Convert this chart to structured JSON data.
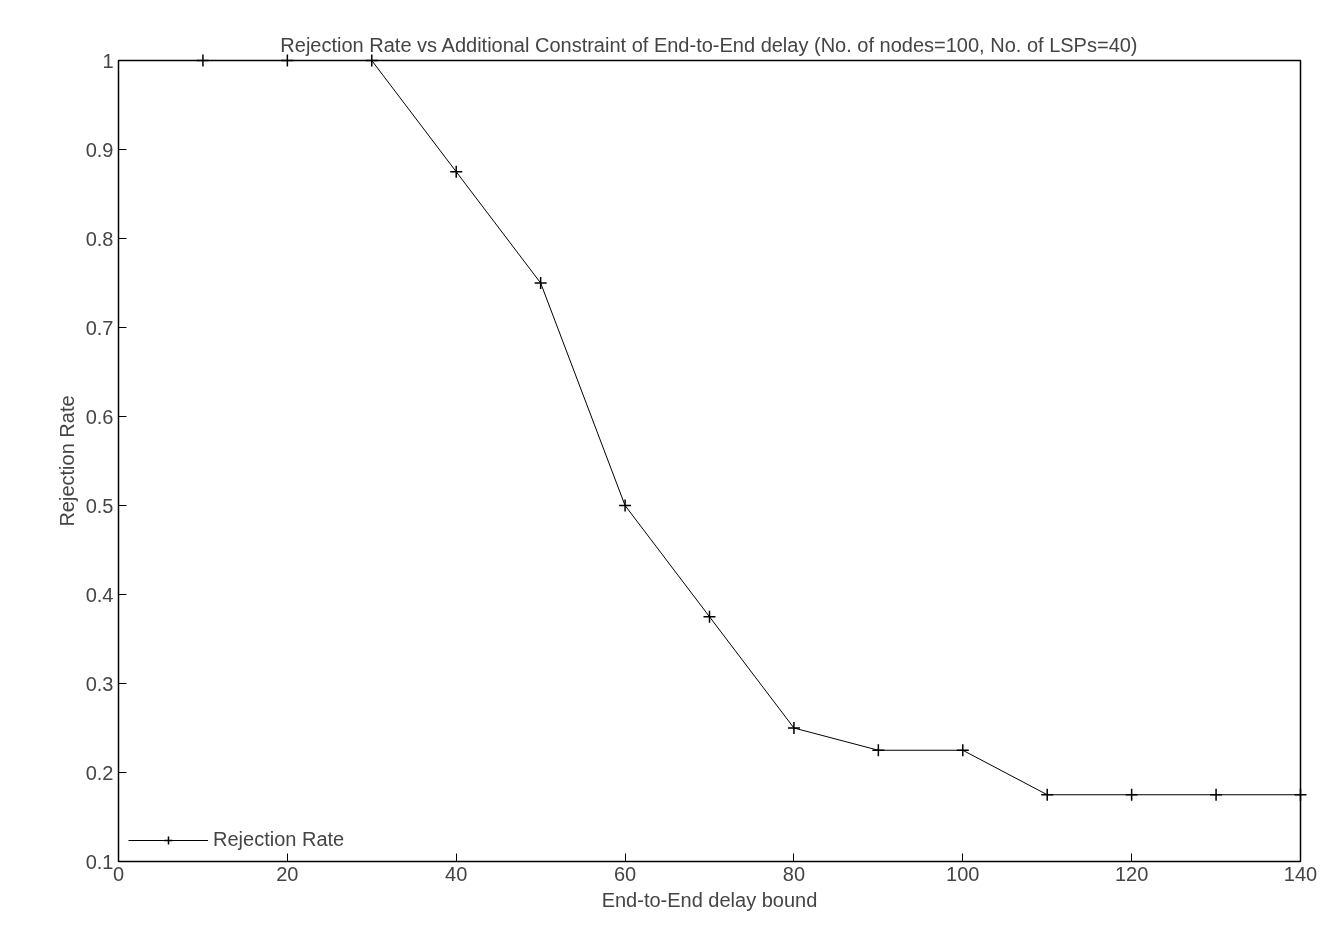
{
  "chart_data": {
    "type": "line",
    "title": "Rejection Rate vs Additional Constraint of End-to-End delay (No. of nodes=100, No. of LSPs=40)",
    "xlabel": "End-to-End delay bound",
    "ylabel": "Rejection Rate",
    "x": [
      10,
      20,
      30,
      40,
      50,
      60,
      70,
      80,
      90,
      100,
      110,
      120,
      130,
      140
    ],
    "series": [
      {
        "name": "Rejection Rate",
        "color": "#000000",
        "values": [
          1,
          1,
          1,
          0.875,
          0.75,
          0.5,
          0.375,
          0.25,
          0.225,
          0.225,
          0.175,
          0.175,
          0.175,
          0.175
        ]
      }
    ],
    "xlim": [
      0,
      140
    ],
    "ylim": [
      0.1,
      1
    ],
    "xticks": [
      0,
      20,
      40,
      60,
      80,
      100,
      120,
      140
    ],
    "yticks": [
      0.1,
      0.2,
      0.3,
      0.4,
      0.5,
      0.6,
      0.7,
      0.8,
      0.9,
      1
    ],
    "grid": false,
    "legend": "bottom left",
    "marker": "cross",
    "line_style": "solid"
  }
}
